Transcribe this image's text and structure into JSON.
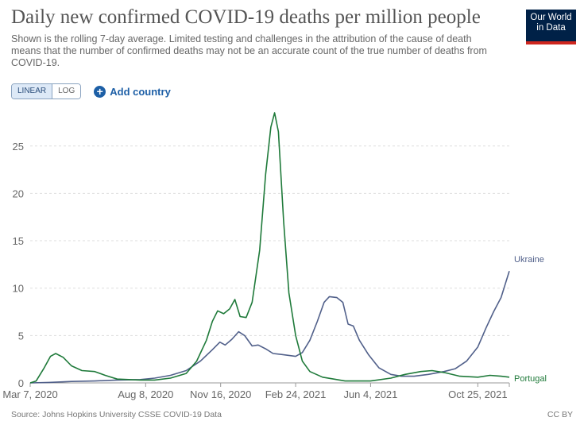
{
  "header": {
    "title": "Daily new confirmed COVID-19 deaths per million people",
    "subtitle": "Shown is the rolling 7-day average. Limited testing and challenges in the attribution of the cause of death means that the number of confirmed deaths may not be an accurate count of the true number of deaths from COVID-19.",
    "logo_line1": "Our World",
    "logo_line2": "in Data"
  },
  "controls": {
    "linear_label": "LINEAR",
    "log_label": "LOG",
    "add_country_label": "Add country"
  },
  "footer": {
    "source": "Source: Johns Hopkins University CSSE COVID-19 Data",
    "license": "CC BY"
  },
  "colors": {
    "ukraine": "#51608a",
    "portugal": "#1f7a3a",
    "grid": "#dddddd",
    "axis": "#666666"
  },
  "chart_data": {
    "type": "line",
    "title": "Daily new confirmed COVID-19 deaths per million people",
    "xlabel": "",
    "ylabel": "",
    "scale": "linear",
    "grid": true,
    "x_range": [
      "2020-03-07",
      "2021-12-06"
    ],
    "ylim": [
      0,
      28.5
    ],
    "y_ticks": [
      0,
      5,
      10,
      15,
      20,
      25
    ],
    "x_ticks": [
      {
        "date": "2020-03-07",
        "label": "Mar 7, 2020"
      },
      {
        "date": "2020-08-08",
        "label": "Aug 8, 2020"
      },
      {
        "date": "2020-11-16",
        "label": "Nov 16, 2020"
      },
      {
        "date": "2021-02-24",
        "label": "Feb 24, 2021"
      },
      {
        "date": "2021-06-04",
        "label": "Jun 4, 2021"
      },
      {
        "date": "2021-10-25",
        "label": "Oct 25, 2021"
      }
    ],
    "series": [
      {
        "name": "Ukraine",
        "color": "#51608a",
        "points": [
          [
            "2020-03-07",
            0
          ],
          [
            "2020-04-01",
            0.05
          ],
          [
            "2020-05-01",
            0.15
          ],
          [
            "2020-06-01",
            0.2
          ],
          [
            "2020-07-01",
            0.3
          ],
          [
            "2020-08-01",
            0.35
          ],
          [
            "2020-08-20",
            0.5
          ],
          [
            "2020-09-10",
            0.8
          ],
          [
            "2020-10-01",
            1.3
          ],
          [
            "2020-10-20",
            2.3
          ],
          [
            "2020-11-05",
            3.5
          ],
          [
            "2020-11-15",
            4.3
          ],
          [
            "2020-11-22",
            4.0
          ],
          [
            "2020-12-01",
            4.6
          ],
          [
            "2020-12-10",
            5.4
          ],
          [
            "2020-12-18",
            5.0
          ],
          [
            "2020-12-28",
            3.9
          ],
          [
            "2021-01-05",
            4.0
          ],
          [
            "2021-01-15",
            3.6
          ],
          [
            "2021-01-25",
            3.1
          ],
          [
            "2021-02-05",
            3.0
          ],
          [
            "2021-02-15",
            2.9
          ],
          [
            "2021-02-24",
            2.8
          ],
          [
            "2021-03-05",
            3.2
          ],
          [
            "2021-03-15",
            4.5
          ],
          [
            "2021-03-25",
            6.5
          ],
          [
            "2021-04-03",
            8.5
          ],
          [
            "2021-04-10",
            9.1
          ],
          [
            "2021-04-20",
            9.0
          ],
          [
            "2021-04-28",
            8.5
          ],
          [
            "2021-05-05",
            6.2
          ],
          [
            "2021-05-12",
            6.0
          ],
          [
            "2021-05-20",
            4.5
          ],
          [
            "2021-06-01",
            3.0
          ],
          [
            "2021-06-15",
            1.6
          ],
          [
            "2021-07-01",
            0.9
          ],
          [
            "2021-07-15",
            0.7
          ],
          [
            "2021-08-01",
            0.7
          ],
          [
            "2021-08-20",
            0.9
          ],
          [
            "2021-09-10",
            1.2
          ],
          [
            "2021-09-25",
            1.5
          ],
          [
            "2021-10-10",
            2.3
          ],
          [
            "2021-10-25",
            3.8
          ],
          [
            "2021-11-05",
            5.8
          ],
          [
            "2021-11-15",
            7.5
          ],
          [
            "2021-11-25",
            9.0
          ],
          [
            "2021-12-06",
            11.8
          ]
        ]
      },
      {
        "name": "Portugal",
        "color": "#1f7a3a",
        "points": [
          [
            "2020-03-07",
            0
          ],
          [
            "2020-03-15",
            0.2
          ],
          [
            "2020-03-25",
            1.5
          ],
          [
            "2020-04-03",
            2.8
          ],
          [
            "2020-04-10",
            3.1
          ],
          [
            "2020-04-20",
            2.7
          ],
          [
            "2020-05-01",
            1.8
          ],
          [
            "2020-05-15",
            1.3
          ],
          [
            "2020-06-01",
            1.2
          ],
          [
            "2020-06-15",
            0.8
          ],
          [
            "2020-07-01",
            0.4
          ],
          [
            "2020-08-01",
            0.3
          ],
          [
            "2020-08-20",
            0.3
          ],
          [
            "2020-09-10",
            0.5
          ],
          [
            "2020-10-01",
            1.0
          ],
          [
            "2020-10-15",
            2.3
          ],
          [
            "2020-10-28",
            4.5
          ],
          [
            "2020-11-05",
            6.5
          ],
          [
            "2020-11-12",
            7.6
          ],
          [
            "2020-11-20",
            7.3
          ],
          [
            "2020-11-28",
            7.8
          ],
          [
            "2020-12-05",
            8.8
          ],
          [
            "2020-12-12",
            7.0
          ],
          [
            "2020-12-20",
            6.9
          ],
          [
            "2020-12-28",
            8.5
          ],
          [
            "2021-01-07",
            14.0
          ],
          [
            "2021-01-15",
            22.0
          ],
          [
            "2021-01-22",
            27.0
          ],
          [
            "2021-01-27",
            28.5
          ],
          [
            "2021-02-01",
            26.5
          ],
          [
            "2021-02-08",
            17.0
          ],
          [
            "2021-02-15",
            9.5
          ],
          [
            "2021-02-24",
            5.0
          ],
          [
            "2021-03-05",
            2.3
          ],
          [
            "2021-03-15",
            1.2
          ],
          [
            "2021-04-01",
            0.6
          ],
          [
            "2021-05-01",
            0.2
          ],
          [
            "2021-06-04",
            0.2
          ],
          [
            "2021-07-01",
            0.5
          ],
          [
            "2021-07-20",
            0.9
          ],
          [
            "2021-08-10",
            1.2
          ],
          [
            "2021-08-25",
            1.3
          ],
          [
            "2021-09-10",
            1.1
          ],
          [
            "2021-10-01",
            0.7
          ],
          [
            "2021-10-25",
            0.6
          ],
          [
            "2021-11-10",
            0.8
          ],
          [
            "2021-11-25",
            0.7
          ],
          [
            "2021-12-06",
            0.6
          ]
        ]
      }
    ]
  }
}
